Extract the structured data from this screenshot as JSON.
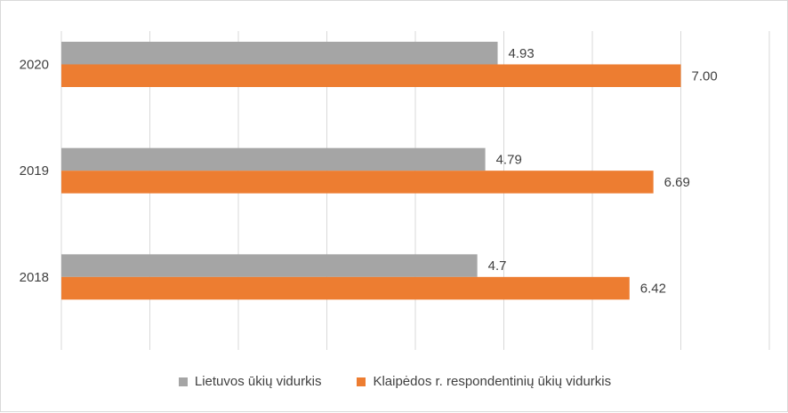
{
  "chart_data": {
    "type": "bar",
    "orientation": "horizontal",
    "categories": [
      "2018",
      "2019",
      "2020"
    ],
    "series": [
      {
        "name": "Lietuvos ūkių vidurkis",
        "color": "#a5a5a5",
        "values": [
          4.7,
          4.79,
          4.93
        ],
        "labels": [
          "4.7",
          "4.79",
          "4.93"
        ]
      },
      {
        "name": "Klaipėdos r. respondentinių ūkių vidurkis",
        "color": "#ed7d31",
        "values": [
          6.42,
          6.69,
          7.0
        ],
        "labels": [
          "6.42",
          "6.69",
          "7.00"
        ]
      }
    ],
    "xlim": [
      0,
      8
    ],
    "grid": "vertical",
    "legend_position": "bottom"
  },
  "legend": {
    "series_0": "Lietuvos ūkių vidurkis",
    "series_1": "Klaipėdos r. respondentinių ūkių vidurkis"
  }
}
